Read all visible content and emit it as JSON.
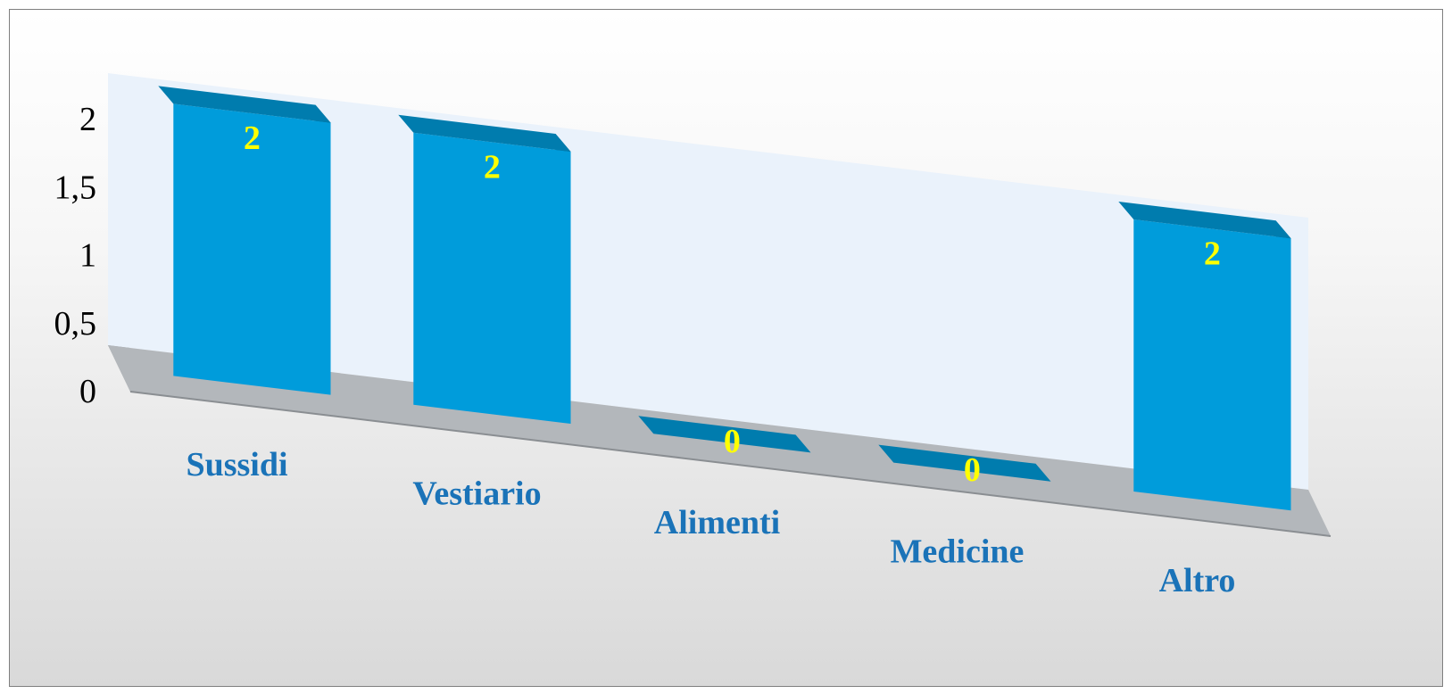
{
  "chart_data": {
    "type": "bar",
    "style": "3d-column",
    "categories": [
      "Sussidi",
      "Vestiario",
      "Alimenti",
      "Medicine",
      "Altro"
    ],
    "values": [
      2,
      2,
      0,
      0,
      2
    ],
    "data_labels": [
      "2",
      "2",
      "0",
      "0",
      "2"
    ],
    "title": "",
    "xlabel": "",
    "ylabel": "",
    "ylim": [
      0,
      2
    ],
    "yticks": [
      "0",
      "0,5",
      "1",
      "1,5",
      "2"
    ],
    "ytick_values": [
      0,
      0.5,
      1,
      1.5,
      2
    ],
    "grid": false,
    "legend": "none"
  },
  "colors": {
    "bar_front": "#009cdb",
    "bar_side": "#006a93",
    "bar_top": "#007cae",
    "back_wall": "#eaf2fb",
    "side_wall": "#9a9da1",
    "floor": "#b3b7bb",
    "category_label": "#1a73b8",
    "data_label": "#ffff00"
  }
}
